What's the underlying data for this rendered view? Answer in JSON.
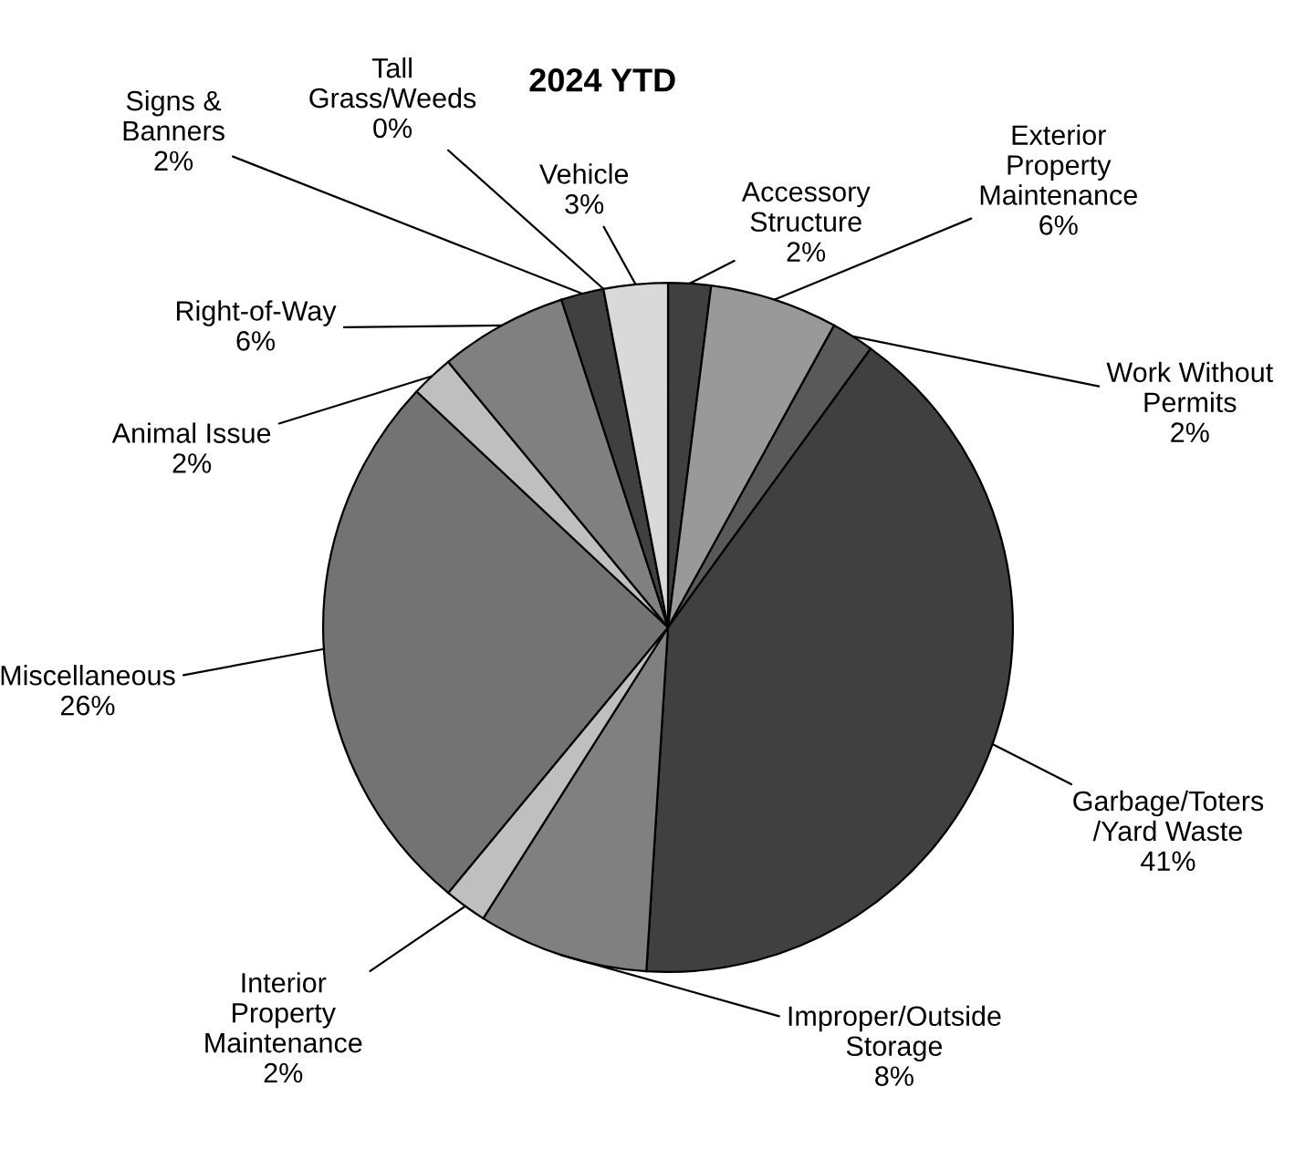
{
  "chart_data": {
    "type": "pie",
    "title": "2024 YTD",
    "categories": [
      "Accessory\nStructure",
      "Exterior\nProperty\nMaintenance",
      "Work Without\nPermits",
      "Garbage/Toters\n/Yard Waste",
      "Improper/Outside\nStorage",
      "Interior\nProperty\nMaintenance",
      "Miscellaneous",
      "Animal Issue",
      "Right-of-Way",
      "Signs &\nBanners",
      "Tall\nGrass/Weeds",
      "Vehicle"
    ],
    "values": [
      2,
      6,
      2,
      41,
      8,
      2,
      26,
      2,
      6,
      2,
      0,
      3
    ],
    "value_labels": [
      "2%",
      "6%",
      "2%",
      "41%",
      "8%",
      "2%",
      "26%",
      "2%",
      "6%",
      "2%",
      "0%",
      "3%"
    ],
    "colors": [
      "#404040",
      "#999999",
      "#595959",
      "#404040",
      "#808080",
      "#bfbfbf",
      "#737373",
      "#bfbfbf",
      "#808080",
      "#404040",
      "#a6a6a6",
      "#d9d9d9"
    ]
  }
}
